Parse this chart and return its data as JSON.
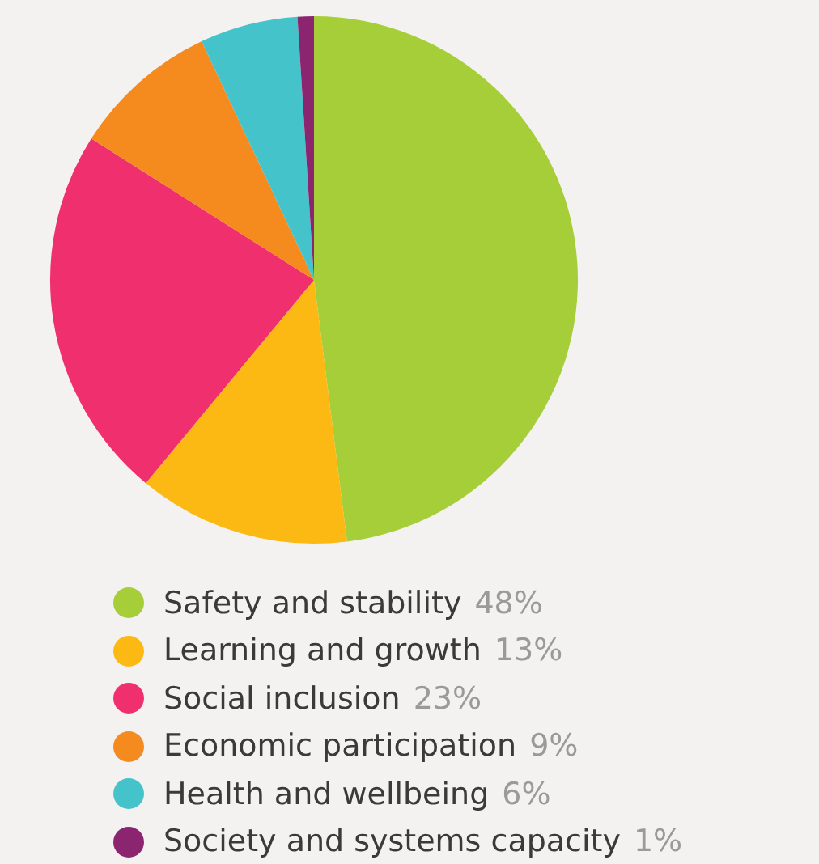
{
  "chart_data": {
    "type": "pie",
    "categories": [
      "Safety and stability",
      "Learning and growth",
      "Social inclusion",
      "Economic participation",
      "Health and wellbeing",
      "Society and systems capacity"
    ],
    "values": [
      48,
      13,
      23,
      9,
      6,
      1
    ],
    "colors": [
      "#a6ce39",
      "#fdb913",
      "#f0306e",
      "#f58a1f",
      "#45c3cb",
      "#8b2570"
    ],
    "value_labels": [
      "48%",
      "13%",
      "23%",
      "9%",
      "6%",
      "1%"
    ],
    "legend": "bottom"
  }
}
